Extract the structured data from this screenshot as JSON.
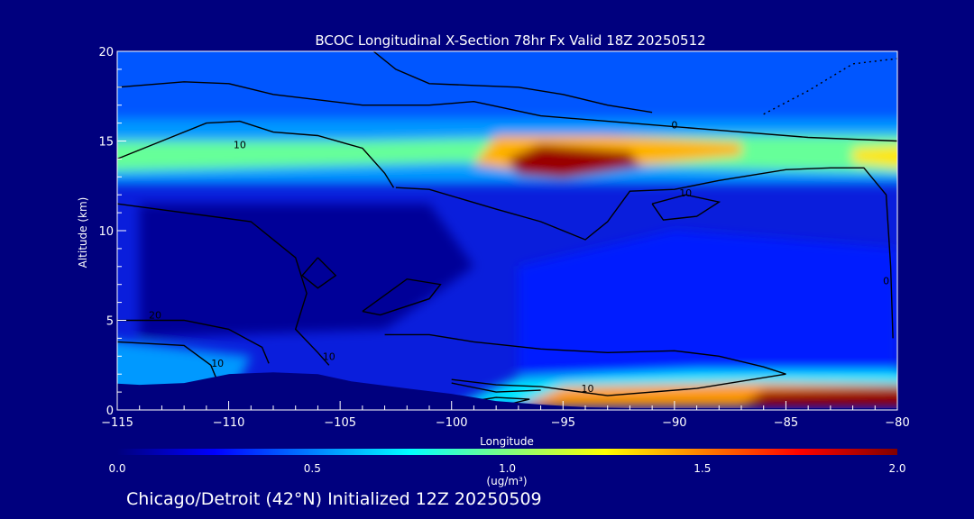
{
  "chart_data": {
    "type": "heatmap",
    "title": "BCOC Longitudinal X-Section 78hr  Fx Valid 18Z 20250512",
    "xlabel": "Longitude",
    "ylabel": "Altitude (km)",
    "xlim": [
      -115,
      -80
    ],
    "ylim": [
      0,
      20
    ],
    "x_ticks": [
      -115,
      -110,
      -105,
      -100,
      -95,
      -90,
      -85,
      -80
    ],
    "x_tick_labels": [
      "−115",
      "−110",
      "−105",
      "−100",
      "−95",
      "−90",
      "−85",
      "−80"
    ],
    "y_ticks": [
      0,
      5,
      10,
      15,
      20
    ],
    "y_tick_labels": [
      "0",
      "5",
      "10",
      "15",
      "20"
    ],
    "colorbar": {
      "min": 0.0,
      "max": 2.0,
      "ticks": [
        0.0,
        0.5,
        1.0,
        1.5,
        2.0
      ],
      "tick_labels": [
        "0.0",
        "0.5",
        "1.0",
        "1.5",
        "2.0"
      ],
      "unit_label": "(ug/m³)",
      "colors": [
        "#00007e",
        "#0000ff",
        "#0080ff",
        "#00ffff",
        "#80ff80",
        "#ffff00",
        "#ff8000",
        "#ff0000",
        "#800000"
      ]
    },
    "field_features": [
      {
        "lon_range": [
          -115,
          -80
        ],
        "alt_range": [
          13.5,
          15.5
        ],
        "value": 0.9
      },
      {
        "lon_range": [
          -98,
          -91
        ],
        "alt_range": [
          13.0,
          15.5
        ],
        "value": 1.9
      },
      {
        "lon_range": [
          -97,
          -80
        ],
        "alt_range": [
          0.2,
          1.5
        ],
        "value": 1.6
      },
      {
        "lon_range": [
          -115,
          -80
        ],
        "alt_range": [
          15.5,
          20
        ],
        "value": 0.45
      },
      {
        "lon_range": [
          -115,
          -80
        ],
        "alt_range": [
          2,
          12
        ],
        "value": 0.15
      }
    ],
    "contour_labels": [
      {
        "text": "0",
        "lon": -90,
        "alt": 15.7
      },
      {
        "text": "10",
        "lon": -109.5,
        "alt": 14.6
      },
      {
        "text": "10",
        "lon": -89.5,
        "alt": 11.9
      },
      {
        "text": "20",
        "lon": -113.3,
        "alt": 5.1
      },
      {
        "text": "10",
        "lon": -110.5,
        "alt": 2.4
      },
      {
        "text": "10",
        "lon": -105.5,
        "alt": 2.8
      },
      {
        "text": "10",
        "lon": -93.9,
        "alt": 1.0
      },
      {
        "text": "0",
        "lon": -80.5,
        "alt": 7.0
      }
    ],
    "grid": false
  },
  "footer": {
    "text": "Chicago/Detroit (42°N) Initialized 12Z 20250509"
  },
  "colors": {
    "background": "#00007e",
    "text": "#ffffff",
    "contour": "#000000",
    "terrain": "#00007e"
  }
}
